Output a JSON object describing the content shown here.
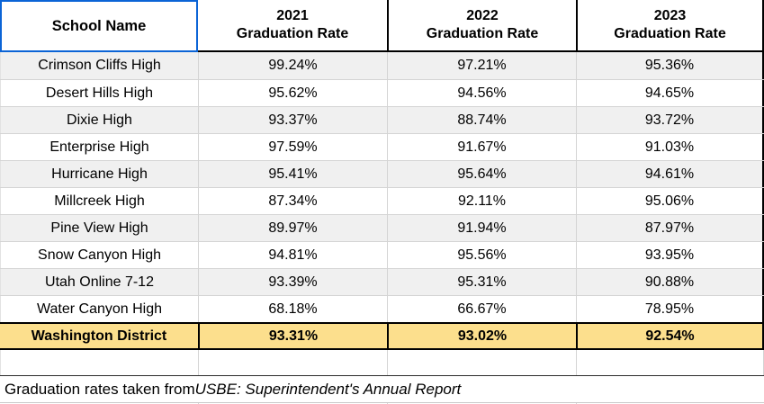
{
  "table": {
    "header": {
      "school": "School Name",
      "col2021_year": "2021",
      "col2021_label": "Graduation Rate",
      "col2022_year": "2022",
      "col2022_label": "Graduation Rate",
      "col2023_year": "2023",
      "col2023_label": "Graduation Rate"
    },
    "rows": [
      {
        "school": "Crimson Cliffs High",
        "r2021": "99.24%",
        "r2022": "97.21%",
        "r2023": "95.36%"
      },
      {
        "school": "Desert Hills High",
        "r2021": "95.62%",
        "r2022": "94.56%",
        "r2023": "94.65%"
      },
      {
        "school": "Dixie High",
        "r2021": "93.37%",
        "r2022": "88.74%",
        "r2023": "93.72%"
      },
      {
        "school": "Enterprise High",
        "r2021": "97.59%",
        "r2022": "91.67%",
        "r2023": "91.03%"
      },
      {
        "school": "Hurricane High",
        "r2021": "95.41%",
        "r2022": "95.64%",
        "r2023": "94.61%"
      },
      {
        "school": "Millcreek High",
        "r2021": "87.34%",
        "r2022": "92.11%",
        "r2023": "95.06%"
      },
      {
        "school": "Pine View High",
        "r2021": "89.97%",
        "r2022": "91.94%",
        "r2023": "87.97%"
      },
      {
        "school": "Snow Canyon High",
        "r2021": "94.81%",
        "r2022": "95.56%",
        "r2023": "93.95%"
      },
      {
        "school": "Utah Online 7-12",
        "r2021": "93.39%",
        "r2022": "95.31%",
        "r2023": "90.88%"
      },
      {
        "school": "Water Canyon High",
        "r2021": "68.18%",
        "r2022": "66.67%",
        "r2023": "78.95%"
      }
    ],
    "district_row": {
      "school": "Washington District",
      "r2021": "93.31%",
      "r2022": "93.02%",
      "r2023": "92.54%"
    },
    "footer": {
      "prefix": "Graduation rates taken from ",
      "source_italic": "USBE: Superintendent's Annual Report"
    }
  },
  "colors": {
    "selection_blue": "#0b64d6",
    "district_highlight": "#fcdf8d",
    "zebra_gray": "#f0f0f0",
    "grid_gray": "#d4d4d4",
    "heavy_border": "#000000"
  },
  "chart_data": {
    "type": "table",
    "title": "Graduation Rates by School",
    "categories": [
      "2021 Graduation Rate",
      "2022 Graduation Rate",
      "2023 Graduation Rate"
    ],
    "series": [
      {
        "name": "Crimson Cliffs High",
        "values": [
          99.24,
          97.21,
          95.36
        ]
      },
      {
        "name": "Desert Hills High",
        "values": [
          95.62,
          94.56,
          94.65
        ]
      },
      {
        "name": "Dixie High",
        "values": [
          93.37,
          88.74,
          93.72
        ]
      },
      {
        "name": "Enterprise High",
        "values": [
          97.59,
          91.67,
          91.03
        ]
      },
      {
        "name": "Hurricane High",
        "values": [
          95.41,
          95.64,
          94.61
        ]
      },
      {
        "name": "Millcreek High",
        "values": [
          87.34,
          92.11,
          95.06
        ]
      },
      {
        "name": "Pine View High",
        "values": [
          89.97,
          91.94,
          87.97
        ]
      },
      {
        "name": "Snow Canyon High",
        "values": [
          94.81,
          95.56,
          93.95
        ]
      },
      {
        "name": "Utah Online 7-12",
        "values": [
          93.39,
          95.31,
          90.88
        ]
      },
      {
        "name": "Water Canyon High",
        "values": [
          68.18,
          66.67,
          78.95
        ]
      },
      {
        "name": "Washington District",
        "values": [
          93.31,
          93.02,
          92.54
        ]
      }
    ]
  }
}
